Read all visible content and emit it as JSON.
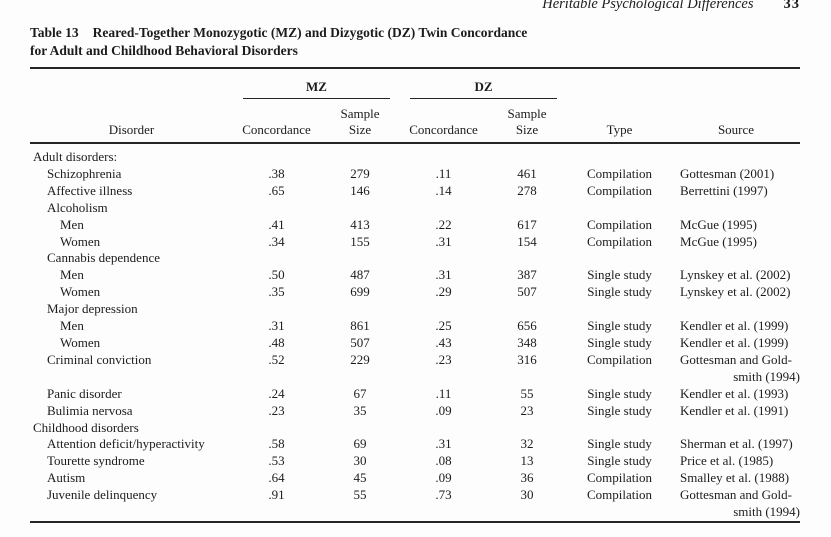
{
  "page": {
    "running_head": "Heritable Psychological Differences",
    "page_number": "33"
  },
  "table": {
    "caption": {
      "label": "Table 13",
      "title_line1": "Reared-Together Monozygotic (MZ) and Dizygotic (DZ) Twin Concordance",
      "title_line2": "for Adult and Childhood Behavioral Disorders"
    },
    "header": {
      "disorder": "Disorder",
      "mz": "MZ",
      "dz": "DZ",
      "concordance": "Concordance",
      "sample_size": "Sample\nSize",
      "type": "Type",
      "source": "Source"
    },
    "rows": [
      {
        "label": "Adult disorders:",
        "indent": 0
      },
      {
        "label": "Schizophrenia",
        "indent": 1,
        "mz_concordance": ".38",
        "mz_sample": "279",
        "dz_concordance": ".11",
        "dz_sample": "461",
        "type": "Compilation",
        "source": [
          "Gottesman (2001)"
        ]
      },
      {
        "label": "Affective illness",
        "indent": 1,
        "mz_concordance": ".65",
        "mz_sample": "146",
        "dz_concordance": ".14",
        "dz_sample": "278",
        "type": "Compilation",
        "source": [
          "Berrettini (1997)"
        ]
      },
      {
        "label": "Alcoholism",
        "indent": 1
      },
      {
        "label": "Men",
        "indent": 2,
        "mz_concordance": ".41",
        "mz_sample": "413",
        "dz_concordance": ".22",
        "dz_sample": "617",
        "type": "Compilation",
        "source": [
          "McGue (1995)"
        ]
      },
      {
        "label": "Women",
        "indent": 2,
        "mz_concordance": ".34",
        "mz_sample": "155",
        "dz_concordance": ".31",
        "dz_sample": "154",
        "type": "Compilation",
        "source": [
          "McGue (1995)"
        ]
      },
      {
        "label": "Cannabis dependence",
        "indent": 1
      },
      {
        "label": "Men",
        "indent": 2,
        "mz_concordance": ".50",
        "mz_sample": "487",
        "dz_concordance": ".31",
        "dz_sample": "387",
        "type": "Single study",
        "source": [
          "Lynskey et al. (2002)"
        ]
      },
      {
        "label": "Women",
        "indent": 2,
        "mz_concordance": ".35",
        "mz_sample": "699",
        "dz_concordance": ".29",
        "dz_sample": "507",
        "type": "Single study",
        "source": [
          "Lynskey et al. (2002)"
        ]
      },
      {
        "label": "Major depression",
        "indent": 1
      },
      {
        "label": "Men",
        "indent": 2,
        "mz_concordance": ".31",
        "mz_sample": "861",
        "dz_concordance": ".25",
        "dz_sample": "656",
        "type": "Single study",
        "source": [
          "Kendler et al. (1999)"
        ]
      },
      {
        "label": "Women",
        "indent": 2,
        "mz_concordance": ".48",
        "mz_sample": "507",
        "dz_concordance": ".43",
        "dz_sample": "348",
        "type": "Single study",
        "source": [
          "Kendler et al. (1999)"
        ]
      },
      {
        "label": "Criminal conviction",
        "indent": 1,
        "mz_concordance": ".52",
        "mz_sample": "229",
        "dz_concordance": ".23",
        "dz_sample": "316",
        "type": "Compilation",
        "source": [
          "Gottesman and Gold-",
          "smith (1994)"
        ]
      },
      {
        "label": "Panic disorder",
        "indent": 1,
        "mz_concordance": ".24",
        "mz_sample": "67",
        "dz_concordance": ".11",
        "dz_sample": "55",
        "type": "Single study",
        "source": [
          "Kendler et al. (1993)"
        ]
      },
      {
        "label": "Bulimia nervosa",
        "indent": 1,
        "mz_concordance": ".23",
        "mz_sample": "35",
        "dz_concordance": ".09",
        "dz_sample": "23",
        "type": "Single study",
        "source": [
          "Kendler et al. (1991)"
        ]
      },
      {
        "label": "Childhood disorders",
        "indent": 0
      },
      {
        "label": "Attention deficit/hyperactivity",
        "indent": 1,
        "mz_concordance": ".58",
        "mz_sample": "69",
        "dz_concordance": ".31",
        "dz_sample": "32",
        "type": "Single study",
        "source": [
          "Sherman et al. (1997)"
        ]
      },
      {
        "label": "Tourette syndrome",
        "indent": 1,
        "mz_concordance": ".53",
        "mz_sample": "30",
        "dz_concordance": ".08",
        "dz_sample": "13",
        "type": "Single study",
        "source": [
          "Price et al. (1985)"
        ]
      },
      {
        "label": "Autism",
        "indent": 1,
        "mz_concordance": ".64",
        "mz_sample": "45",
        "dz_concordance": ".09",
        "dz_sample": "36",
        "type": "Compilation",
        "source": [
          "Smalley et al. (1988)"
        ]
      },
      {
        "label": "Juvenile delinquency",
        "indent": 1,
        "mz_concordance": ".91",
        "mz_sample": "55",
        "dz_concordance": ".73",
        "dz_sample": "30",
        "type": "Compilation",
        "source": [
          "Gottesman and Gold-",
          "smith (1994)"
        ]
      }
    ]
  },
  "colors": {
    "text": "#1c1c1c",
    "rule": "#262626",
    "background": "#fdfdfd"
  }
}
